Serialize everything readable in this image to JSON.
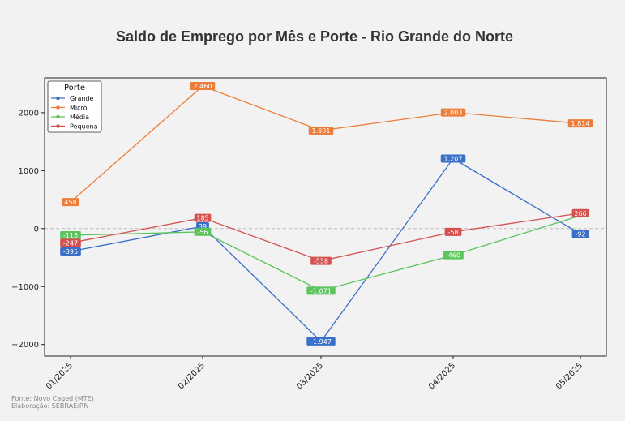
{
  "chart_data": {
    "type": "line",
    "title": "Saldo de Emprego por Mês e Porte - Rio Grande do Norte",
    "xlabel": "",
    "ylabel": "",
    "categories": [
      "01/2025",
      "02/2025",
      "03/2025",
      "04/2025",
      "05/2025"
    ],
    "ylim": [
      -2200,
      2600
    ],
    "yticks": [
      2000,
      1000,
      0,
      -1000,
      -2000
    ],
    "ytick_labels": [
      "2000",
      "1000",
      "0",
      "−1000",
      "−2000"
    ],
    "grid": false,
    "zero_line": true,
    "legend": {
      "title": "Porte",
      "position": "top-left"
    },
    "series": [
      {
        "name": "Grande",
        "color": "#3a6fc9",
        "values": [
          -395,
          39,
          -1947,
          1207,
          -92
        ],
        "labels": [
          "-395",
          "39",
          "-1.947",
          "1.207",
          "-92"
        ]
      },
      {
        "name": "Micro",
        "color": "#ed7d3a",
        "values": [
          458,
          2460,
          1691,
          2003,
          1814
        ],
        "labels": [
          "458",
          "2.460",
          "1.691",
          "2.003",
          "1.814"
        ]
      },
      {
        "name": "Média",
        "color": "#5cc45c",
        "values": [
          -115,
          -56,
          -1071,
          -460,
          225
        ],
        "labels": [
          "-115",
          "-56",
          "-1.071",
          "-460",
          ""
        ]
      },
      {
        "name": "Pequena",
        "color": "#d65050",
        "values": [
          -247,
          185,
          -558,
          -58,
          266
        ],
        "labels": [
          "-247",
          "185",
          "-558",
          "-58",
          "266"
        ]
      }
    ]
  },
  "footer": {
    "source_line": "Fonte: Novo Caged (MTE)",
    "credit_line": "Elaboração: SEBRAE/RN"
  }
}
